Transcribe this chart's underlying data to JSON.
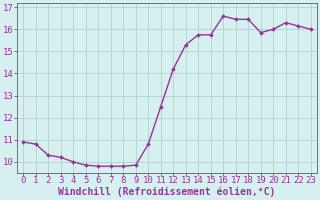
{
  "x": [
    0,
    1,
    2,
    3,
    4,
    5,
    6,
    7,
    8,
    9,
    10,
    11,
    12,
    13,
    14,
    15,
    16,
    17,
    18,
    19,
    20,
    21,
    22,
    23
  ],
  "y": [
    10.9,
    10.8,
    10.3,
    10.2,
    10.0,
    9.85,
    9.8,
    9.8,
    9.8,
    9.85,
    10.8,
    12.5,
    14.2,
    15.3,
    15.75,
    15.75,
    16.6,
    16.45,
    16.45,
    15.85,
    16.0,
    16.3,
    16.15,
    16.0
  ],
  "line_color": "#993399",
  "marker": "D",
  "marker_size": 2.0,
  "bg_color": "#d6f0f0",
  "grid_color": "#b0d0d0",
  "xlabel": "Windchill (Refroidissement éolien,°C)",
  "xlim": [
    -0.5,
    23.5
  ],
  "ylim": [
    9.5,
    17.2
  ],
  "yticks": [
    10,
    11,
    12,
    13,
    14,
    15,
    16,
    17
  ],
  "xticks": [
    0,
    1,
    2,
    3,
    4,
    5,
    6,
    7,
    8,
    9,
    10,
    11,
    12,
    13,
    14,
    15,
    16,
    17,
    18,
    19,
    20,
    21,
    22,
    23
  ],
  "tick_color": "#993399",
  "label_color": "#993399",
  "xlabel_fontsize": 7.0,
  "tick_fontsize": 6.5,
  "linewidth": 1.0
}
